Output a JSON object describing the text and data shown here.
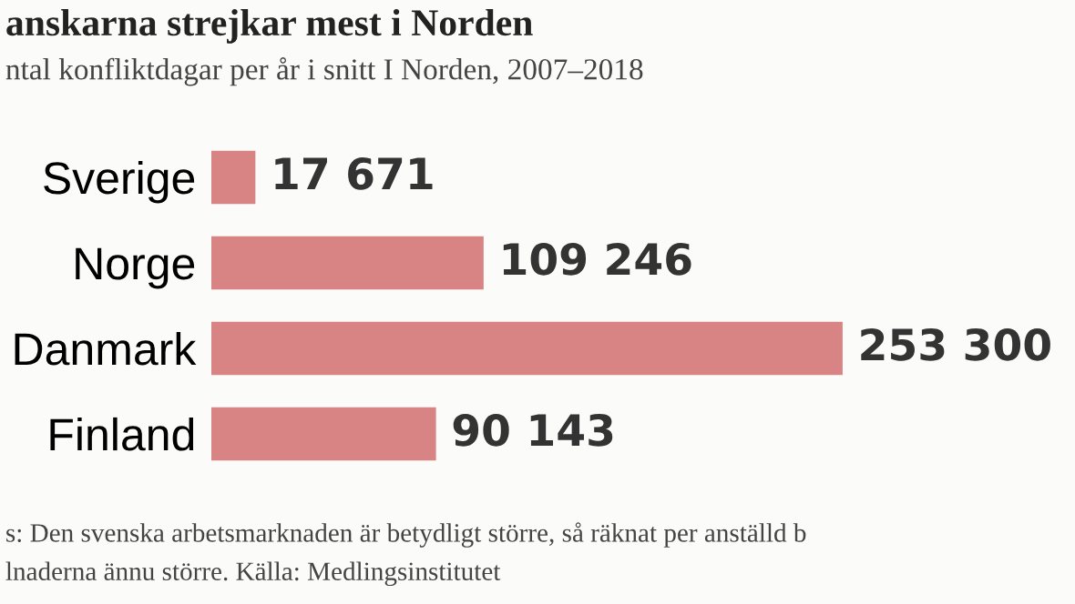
{
  "chart_data": {
    "type": "bar",
    "orientation": "horizontal",
    "title": "anskarna strejkar mest i Norden",
    "subtitle": "ntal konfliktdagar per år i snitt I Norden, 2007–2018",
    "categories": [
      "Sverige",
      "Norge",
      "Danmark",
      "Finland"
    ],
    "values": [
      17671,
      109246,
      253300,
      90143
    ],
    "value_labels": [
      "17 671",
      "109 246",
      "253 300",
      "90 143"
    ],
    "color": "#d98484",
    "grid": false,
    "legend": false,
    "annotations": [
      "s: Den svenska arbetsmarknaden är betydligt större, så räknat per anställd b",
      "lnaderna ännu större. Källa: Medlingsinstitutet"
    ]
  }
}
